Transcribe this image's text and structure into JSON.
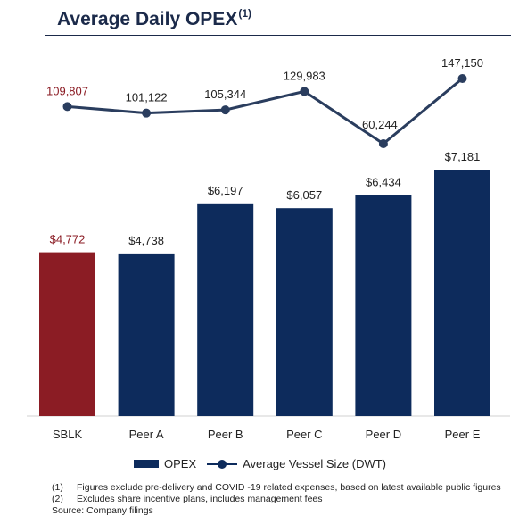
{
  "title": "Average Daily OPEX",
  "title_sup": "(1)",
  "colors": {
    "highlight": "#8b1c24",
    "primary": "#0d2b5c",
    "line": "#2a3d5e"
  },
  "chart_data": {
    "type": "bar",
    "categories": [
      "SBLK",
      "Peer A",
      "Peer B",
      "Peer C",
      "Peer D",
      "Peer E"
    ],
    "series": [
      {
        "name": "OPEX",
        "type": "bar",
        "values": [
          4772,
          4738,
          6197,
          6057,
          6434,
          7181
        ],
        "labels": [
          "$4,772",
          "$4,738",
          "$6,197",
          "$6,057",
          "$6,434",
          "$7,181"
        ]
      },
      {
        "name": "Average Vessel Size (DWT)",
        "type": "line",
        "values": [
          109807,
          101122,
          105344,
          129983,
          60244,
          147150
        ],
        "labels": [
          "109,807",
          "101,122",
          "105,344",
          "129,983",
          "60,244",
          "147,150"
        ]
      }
    ],
    "legend_position": "bottom",
    "grid": false
  },
  "legend": {
    "bar_label": "OPEX",
    "line_label": "Average Vessel Size (DWT)"
  },
  "notes": [
    {
      "num": "(1)",
      "text": "Figures exclude pre-delivery and COVID -19 related expenses, based on latest available public figures"
    },
    {
      "num": "(2)",
      "text": "Excludes share incentive plans, includes management fees"
    }
  ],
  "source": "Source: Company filings"
}
